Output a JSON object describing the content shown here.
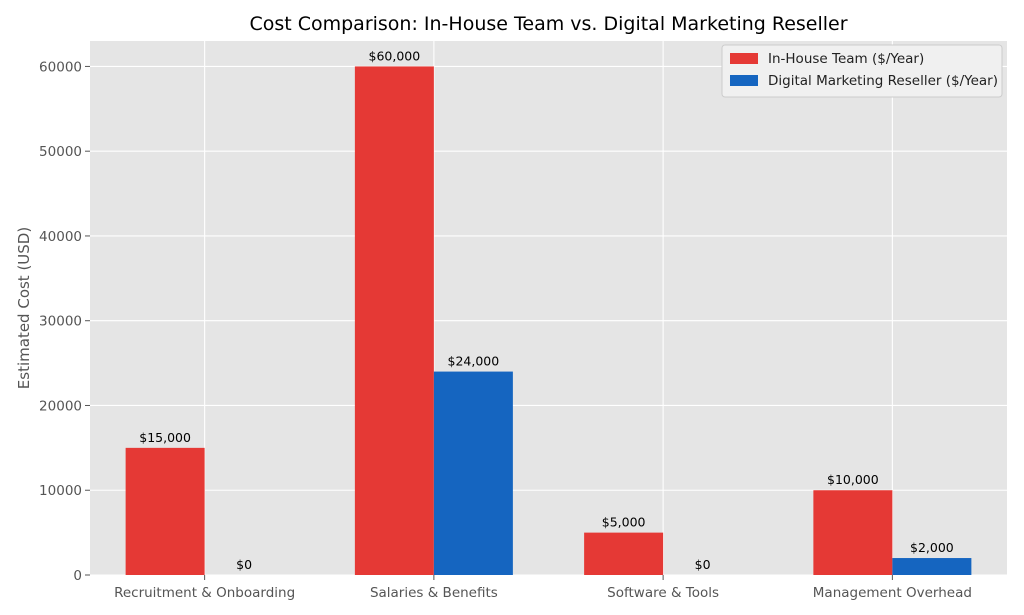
{
  "chart_data": {
    "type": "bar",
    "title": "Cost Comparison: In-House Team vs. Digital Marketing Reseller",
    "xlabel": "",
    "ylabel": "Estimated Cost (USD)",
    "categories": [
      "Recruitment & Onboarding",
      "Salaries & Benefits",
      "Software & Tools",
      "Management Overhead"
    ],
    "series": [
      {
        "name": "In-House Team ($/Year)",
        "color": "#E53935",
        "values": [
          15000,
          60000,
          5000,
          10000
        ],
        "labels": [
          "$15,000",
          "$60,000",
          "$5,000",
          "$10,000"
        ]
      },
      {
        "name": "Digital Marketing Reseller ($/Year)",
        "color": "#1565C0",
        "values": [
          0,
          24000,
          0,
          2000
        ],
        "labels": [
          "$0",
          "$24,000",
          "$0",
          "$2,000"
        ]
      }
    ],
    "yticks": [
      0,
      10000,
      20000,
      30000,
      40000,
      50000,
      60000
    ],
    "ylim": [
      0,
      63000
    ],
    "grid": true,
    "legend_position": "top-right",
    "background": "#E5E5E5"
  }
}
